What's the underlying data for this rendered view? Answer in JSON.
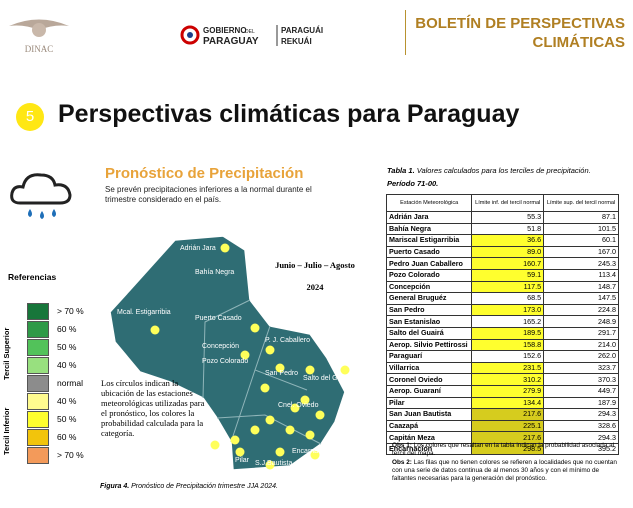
{
  "header": {
    "logo_left": "DINAC",
    "gov_top": "GOBIERNO",
    "gov_del": "DEL",
    "gov_bottom": "PARAGUAY",
    "gov_guarani_1": "PARAGUÁI",
    "gov_guarani_2": "REKUÁI",
    "bulletin_1": "BOLETÍN DE PERSPECTIVAS",
    "bulletin_2": "CLIMÁTICAS"
  },
  "section": {
    "number": "5",
    "title": "Perspectivas climáticas para Paraguay"
  },
  "forecast": {
    "title": "Pronóstico de Precipitación",
    "description": "Se prevén precipitaciones inferiores a la normal durante el trimestre considerado en el país."
  },
  "legend": {
    "title": "Referencias",
    "upper_label": "Tercil Superior",
    "lower_label": "Tercil Inferior",
    "items": [
      {
        "label": "> 70 %",
        "color": "#17763a"
      },
      {
        "label": "60 %",
        "color": "#2f9a48"
      },
      {
        "label": "50 %",
        "color": "#52c25a"
      },
      {
        "label": "40 %",
        "color": "#98e07f"
      },
      {
        "label": "normal",
        "color": "#8c8c8c"
      },
      {
        "label": "40 %",
        "color": "#fffb8f"
      },
      {
        "label": "50 %",
        "color": "#ffff2e"
      },
      {
        "label": "60 %",
        "color": "#f2c40c"
      },
      {
        "label": "> 70 %",
        "color": "#f39a5a"
      }
    ]
  },
  "map": {
    "season": "Junio – Julio – Agosto",
    "year": "2024",
    "labels": [
      "Adrián Jara",
      "Bahía Negra",
      "Mcal. Estigarribia",
      "Puerto Casado",
      "P. J. Caballero",
      "Concepción",
      "Pozo Colorado",
      "San Pedro",
      "Salto del Guairá",
      "Cnel. Oviedo",
      "Pilar",
      "S.J.Bautista",
      "Encarnación"
    ],
    "note": "Los círculos indican la ubicación de las estaciones meteorológicas utilizadas para el pronóstico, los colores la probabilidad calculada para la categoría.",
    "caption_label": "Figura 4.",
    "caption": "Pronóstico de Precipitación trimestre JJA 2024."
  },
  "table": {
    "title_label": "Tabla 1.",
    "title": "Valores calculados para los terciles de precipitación.",
    "period": "Período 71-00.",
    "headers": [
      "Estación Meteorológica",
      "Límite inf. del tercil normal",
      "Límite sup. del tercil normal"
    ],
    "rows": [
      {
        "station": "Adrián Jara",
        "lower": "55.3",
        "upper": "87.1"
      },
      {
        "station": "Bahía Negra",
        "lower": "51.8",
        "upper": "101.5"
      },
      {
        "station": "Mariscal Estigarribia",
        "lower": "36.6",
        "upper": "60.1",
        "color": "#ffff2e"
      },
      {
        "station": "Puerto Casado",
        "lower": "89.0",
        "upper": "167.0",
        "color": "#ffff2e"
      },
      {
        "station": "Pedro Juan Caballero",
        "lower": "160.7",
        "upper": "245.3",
        "color": "#ffff2e"
      },
      {
        "station": "Pozo Colorado",
        "lower": "59.1",
        "upper": "113.4",
        "color": "#ffff2e"
      },
      {
        "station": "Concepción",
        "lower": "117.5",
        "upper": "148.7",
        "color": "#ffff2e"
      },
      {
        "station": "General Bruguéz",
        "lower": "68.5",
        "upper": "147.5"
      },
      {
        "station": "San Pedro",
        "lower": "173.0",
        "upper": "224.8",
        "color": "#ffff2e"
      },
      {
        "station": "San Estanislao",
        "lower": "165.2",
        "upper": "248.9"
      },
      {
        "station": "Salto del Guairá",
        "lower": "189.5",
        "upper": "291.7",
        "color": "#ffff2e"
      },
      {
        "station": "Aerop. Silvio Pettirossi",
        "lower": "158.8",
        "upper": "214.0",
        "color": "#ffff2e"
      },
      {
        "station": "Paraguarí",
        "lower": "152.6",
        "upper": "262.0"
      },
      {
        "station": "Villarrica",
        "lower": "231.5",
        "upper": "323.7",
        "color": "#ffff2e"
      },
      {
        "station": "Coronel Oviedo",
        "lower": "310.2",
        "upper": "370.3",
        "color": "#ffff2e"
      },
      {
        "station": "Aerop. Guaraní",
        "lower": "279.9",
        "upper": "449.7",
        "color": "#ffff2e"
      },
      {
        "station": "Pilar",
        "lower": "134.4",
        "upper": "187.9",
        "color": "#ffff2e"
      },
      {
        "station": "San Juan Bautista",
        "lower": "217.6",
        "upper": "294.3",
        "color": "#d6cc1e"
      },
      {
        "station": "Caazapá",
        "lower": "225.1",
        "upper": "328.6",
        "color": "#d6cc1e"
      },
      {
        "station": "Capitán Meza",
        "lower": "217.6",
        "upper": "294.3",
        "color": "#d6cc1e"
      },
      {
        "station": "Encarnación",
        "lower": "298.5",
        "upper": "395.2",
        "color": "#d6cc1e"
      }
    ],
    "obs1_label": "Obs 1:",
    "obs1": "Los colores que resaltan en la tabla indican la probabilidad asociada al tercil del mapa.",
    "obs2_label": "Obs 2:",
    "obs2": "Las filas que no tienen colores se refieren a localidades que no cuentan con una serie de datos continua de al menos 30 años y con el mínimo de faltantes necesarias para la generación del pronóstico."
  }
}
